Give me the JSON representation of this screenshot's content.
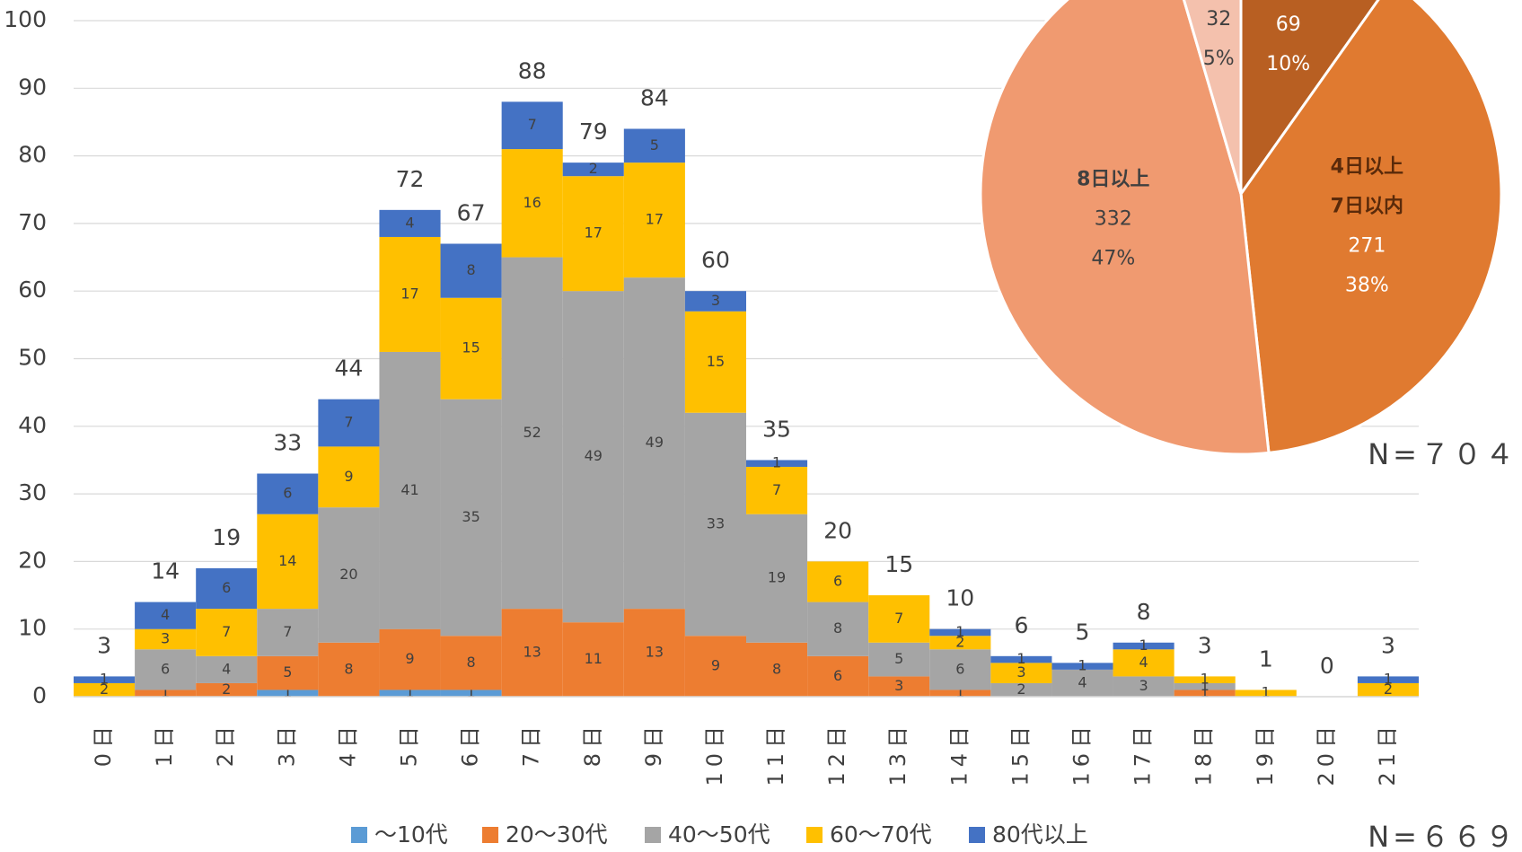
{
  "chart_data": [
    {
      "type": "bar",
      "stacked": true,
      "categories": [
        "0日",
        "1日",
        "2日",
        "3日",
        "4日",
        "5日",
        "6日",
        "7日",
        "8日",
        "9日",
        "10日",
        "11日",
        "12日",
        "13日",
        "14日",
        "15日",
        "16日",
        "17日",
        "18日",
        "19日",
        "20日",
        "21日"
      ],
      "series": [
        {
          "name": "～10代",
          "color": "#5b9bd5",
          "values": [
            0,
            0,
            0,
            1,
            0,
            1,
            1,
            0,
            0,
            0,
            0,
            0,
            0,
            0,
            0,
            0,
            0,
            0,
            0,
            0,
            0,
            0
          ]
        },
        {
          "name": "20～30代",
          "color": "#ed7d31",
          "values": [
            0,
            1,
            2,
            5,
            8,
            9,
            8,
            13,
            11,
            13,
            9,
            8,
            6,
            3,
            1,
            0,
            0,
            0,
            1,
            0,
            0,
            0
          ]
        },
        {
          "name": "40～50代",
          "color": "#a5a5a5",
          "values": [
            0,
            6,
            4,
            7,
            20,
            41,
            35,
            52,
            49,
            49,
            33,
            19,
            8,
            5,
            6,
            2,
            4,
            3,
            1,
            0,
            0,
            0
          ]
        },
        {
          "name": "60～70代",
          "color": "#ffc000",
          "values": [
            2,
            3,
            7,
            14,
            9,
            17,
            15,
            16,
            17,
            17,
            15,
            7,
            6,
            7,
            2,
            3,
            0,
            4,
            1,
            1,
            0,
            2
          ]
        },
        {
          "name": "80代以上",
          "color": "#4472c4",
          "values": [
            1,
            4,
            6,
            6,
            7,
            4,
            8,
            7,
            2,
            5,
            3,
            1,
            0,
            0,
            1,
            1,
            1,
            1,
            0,
            0,
            0,
            1
          ]
        }
      ],
      "totals": [
        3,
        14,
        19,
        33,
        44,
        72,
        67,
        88,
        79,
        84,
        60,
        35,
        20,
        15,
        10,
        6,
        5,
        8,
        3,
        1,
        0,
        3
      ],
      "ylim": [
        0,
        100
      ],
      "yticks": [
        0,
        10,
        20,
        30,
        40,
        50,
        60,
        70,
        80,
        90,
        100
      ],
      "grid": true,
      "note": "N=６６９"
    },
    {
      "type": "pie",
      "names": [
        null,
        [
          "4日以上",
          "7日以内"
        ],
        [
          "8日以上"
        ],
        null
      ],
      "values": [
        69,
        271,
        332,
        32
      ],
      "percent_labels": [
        "10%",
        "38%",
        "47%",
        "5%"
      ],
      "colors": [
        "#b85f22",
        "#e07a30",
        "#f09a70",
        "#f4c1ad"
      ],
      "label_colors": [
        "#ffffff",
        "#ffffff",
        "#404040",
        "#404040"
      ],
      "note": "N=７０４"
    }
  ]
}
